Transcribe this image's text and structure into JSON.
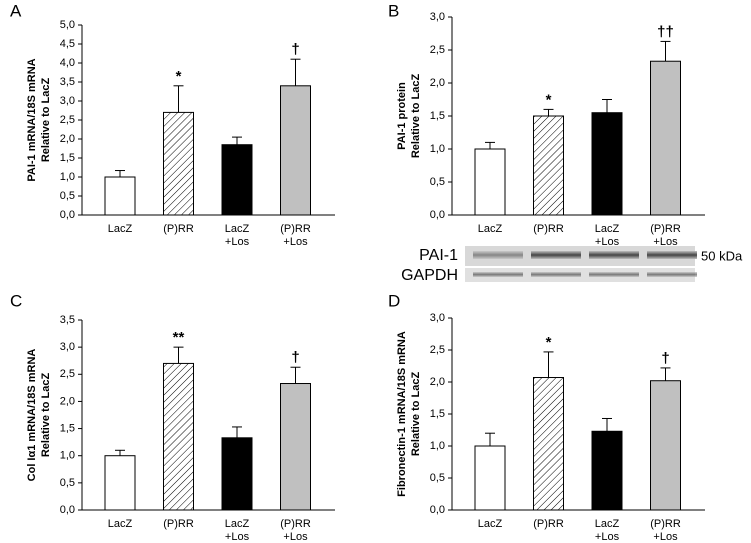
{
  "chart_data": [
    {
      "type": "bar",
      "panel": "A",
      "ylabel": [
        "PAI-1 mRNA/18S mRNA",
        "Relative to LacZ"
      ],
      "categories": [
        [
          "LacZ"
        ],
        [
          "(P)RR"
        ],
        [
          "LacZ",
          "+Los"
        ],
        [
          "(P)RR",
          "+Los"
        ]
      ],
      "values": [
        1.0,
        2.7,
        1.85,
        3.4
      ],
      "errors": [
        0.17,
        0.7,
        0.2,
        0.7
      ],
      "fills": [
        "#ffffff",
        "hatch",
        "#000000",
        "#c0c0c0"
      ],
      "annotations": [
        null,
        "*",
        null,
        "†"
      ],
      "ylim": [
        0,
        5
      ],
      "yticks": [
        {
          "value": 0,
          "label": "0,0"
        },
        {
          "value": 0.5,
          "label": "0,5"
        },
        {
          "value": 1,
          "label": "1,0"
        },
        {
          "value": 1.5,
          "label": "1,5"
        },
        {
          "value": 2,
          "label": "2,0"
        },
        {
          "value": 2.5,
          "label": "2,5"
        },
        {
          "value": 3,
          "label": "3,0"
        },
        {
          "value": 3.5,
          "label": "3,5"
        },
        {
          "value": 4,
          "label": "4,0"
        },
        {
          "value": 4.5,
          "label": "4,5"
        },
        {
          "value": 5,
          "label": "5,0"
        }
      ]
    },
    {
      "type": "bar",
      "panel": "B",
      "ylabel": [
        "PAI-1 protein",
        "Relative to LacZ"
      ],
      "categories": [
        [
          "LacZ"
        ],
        [
          "(P)RR"
        ],
        [
          "LacZ",
          "+Los"
        ],
        [
          "(P)RR",
          "+Los"
        ]
      ],
      "values": [
        1.0,
        1.5,
        1.55,
        2.33
      ],
      "errors": [
        0.1,
        0.1,
        0.2,
        0.3
      ],
      "fills": [
        "#ffffff",
        "hatch",
        "#000000",
        "#c0c0c0"
      ],
      "annotations": [
        null,
        "*",
        null,
        "††"
      ],
      "ylim": [
        0,
        3
      ],
      "yticks": [
        {
          "value": 0,
          "label": "0,0"
        },
        {
          "value": 0.5,
          "label": "0,5"
        },
        {
          "value": 1,
          "label": "1,0"
        },
        {
          "value": 1.5,
          "label": "1,5"
        },
        {
          "value": 2,
          "label": "2,0"
        },
        {
          "value": 2.5,
          "label": "2,5"
        },
        {
          "value": 3,
          "label": "3,0"
        }
      ],
      "blot": {
        "labels": [
          "PAI-1",
          "GAPDH"
        ],
        "size": "50 kDa"
      }
    },
    {
      "type": "bar",
      "panel": "C",
      "ylabel": [
        "Col Iα1 mRNA/18S mRNA",
        "Relative to LacZ"
      ],
      "categories": [
        [
          "LacZ"
        ],
        [
          "(P)RR"
        ],
        [
          "LacZ",
          "+Los"
        ],
        [
          "(P)RR",
          "+Los"
        ]
      ],
      "values": [
        1.0,
        2.7,
        1.33,
        2.33
      ],
      "errors": [
        0.1,
        0.3,
        0.2,
        0.3
      ],
      "fills": [
        "#ffffff",
        "hatch",
        "#000000",
        "#c0c0c0"
      ],
      "annotations": [
        null,
        "**",
        null,
        "†"
      ],
      "ylim": [
        0,
        3.5
      ],
      "yticks": [
        {
          "value": 0,
          "label": "0,0"
        },
        {
          "value": 0.5,
          "label": "0,5"
        },
        {
          "value": 1,
          "label": "1,0"
        },
        {
          "value": 1.5,
          "label": "1,5"
        },
        {
          "value": 2,
          "label": "2,0"
        },
        {
          "value": 2.5,
          "label": "2,5"
        },
        {
          "value": 3,
          "label": "3,0"
        },
        {
          "value": 3.5,
          "label": "3,5"
        }
      ]
    },
    {
      "type": "bar",
      "panel": "D",
      "ylabel": [
        "Fibronectin-1 mRNA/18S mRNA",
        "Relative to LacZ"
      ],
      "categories": [
        [
          "LacZ"
        ],
        [
          "(P)RR"
        ],
        [
          "LacZ",
          "+Los"
        ],
        [
          "(P)RR",
          "+Los"
        ]
      ],
      "values": [
        1.0,
        2.07,
        1.23,
        2.02
      ],
      "errors": [
        0.2,
        0.4,
        0.2,
        0.2
      ],
      "fills": [
        "#ffffff",
        "hatch",
        "#000000",
        "#c0c0c0"
      ],
      "annotations": [
        null,
        "*",
        null,
        "†"
      ],
      "ylim": [
        0,
        3
      ],
      "yticks": [
        {
          "value": 0,
          "label": "0,0"
        },
        {
          "value": 0.5,
          "label": "0,5"
        },
        {
          "value": 1,
          "label": "1,0"
        },
        {
          "value": 1.5,
          "label": "1,5"
        },
        {
          "value": 2,
          "label": "2,0"
        },
        {
          "value": 2.5,
          "label": "2,5"
        },
        {
          "value": 3,
          "label": "3,0"
        }
      ]
    }
  ]
}
